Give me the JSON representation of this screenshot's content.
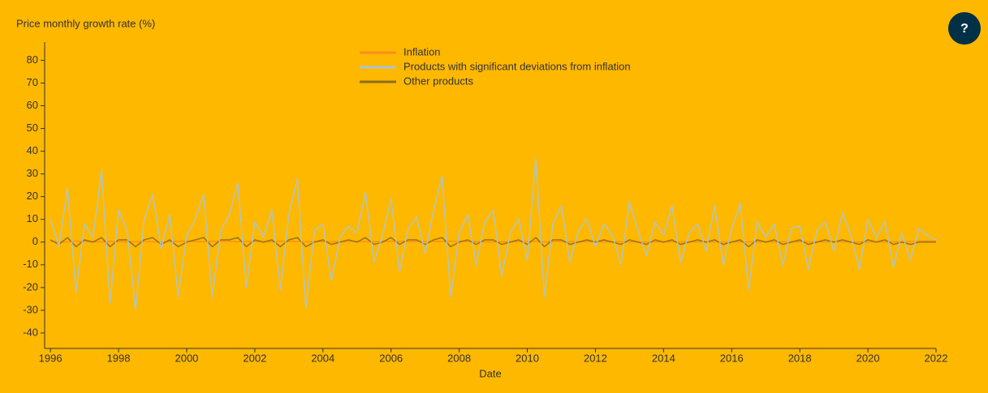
{
  "chart_data": {
    "type": "line",
    "y_label": "Price monthly growth rate (%)",
    "x_label": "Date",
    "help_button": "?",
    "x": [
      1996,
      1996.25,
      1996.5,
      1996.75,
      1997,
      1997.25,
      1997.5,
      1997.75,
      1998,
      1998.25,
      1998.5,
      1998.75,
      1999,
      1999.25,
      1999.5,
      1999.75,
      2000,
      2000.25,
      2000.5,
      2000.75,
      2001,
      2001.25,
      2001.5,
      2001.75,
      2002,
      2002.25,
      2002.5,
      2002.75,
      2003,
      2003.25,
      2003.5,
      2003.75,
      2004,
      2004.25,
      2004.5,
      2004.75,
      2005,
      2005.25,
      2005.5,
      2005.75,
      2006,
      2006.25,
      2006.5,
      2006.75,
      2007,
      2007.25,
      2007.5,
      2007.75,
      2008,
      2008.25,
      2008.5,
      2008.75,
      2009,
      2009.25,
      2009.5,
      2009.75,
      2010,
      2010.25,
      2010.5,
      2010.75,
      2011,
      2011.25,
      2011.5,
      2011.75,
      2012,
      2012.25,
      2012.5,
      2012.75,
      2013,
      2013.25,
      2013.5,
      2013.75,
      2014,
      2014.25,
      2014.5,
      2014.75,
      2015,
      2015.25,
      2015.5,
      2015.75,
      2016,
      2016.25,
      2016.5,
      2016.75,
      2017,
      2017.25,
      2017.5,
      2017.75,
      2018,
      2018.25,
      2018.5,
      2018.75,
      2019,
      2019.25,
      2019.5,
      2019.75,
      2020,
      2020.25,
      2020.5,
      2020.75,
      2021,
      2021.25,
      2021.5,
      2021.75,
      2022
    ],
    "series": [
      {
        "name": "Inflation",
        "color": "#ff8c1a",
        "values": [
          0.3,
          0.2,
          0.1,
          0.4,
          0.3,
          0.2,
          0.1,
          0.3,
          0.2,
          0.1,
          0.2,
          0.3,
          0.2,
          0.1,
          0.2,
          0.3,
          0.4,
          0.3,
          0.2,
          0.3,
          0.4,
          0.3,
          0.2,
          0.3,
          0.3,
          0.2,
          0.2,
          0.3,
          0.4,
          0.2,
          0.1,
          0.3,
          0.2,
          0.2,
          0.1,
          0.3,
          0.3,
          0.2,
          0.2,
          0.3,
          0.3,
          0.3,
          0.2,
          0.3,
          0.3,
          0.3,
          0.3,
          0.4,
          0.4,
          0.3,
          0.2,
          0.1,
          0.1,
          0.1,
          0.2,
          0.2,
          0.3,
          0.3,
          0.1,
          0.2,
          0.3,
          0.2,
          0.1,
          0.2,
          0.3,
          0.1,
          0.2,
          0.2,
          0.1,
          0.1,
          0.1,
          0.1,
          0.1,
          0.2,
          0.1,
          0.1,
          0.1,
          0.1,
          0.1,
          0.1,
          0.1,
          0.1,
          0.1,
          0.1,
          0.2,
          0.1,
          0.1,
          0.2,
          0.2,
          0.1,
          0.1,
          0.1,
          0.2,
          0.1,
          0.1,
          0.1,
          0.1,
          0.1,
          0.1,
          0.1,
          0.2,
          0.3,
          0.4,
          0.5,
          0.5
        ]
      },
      {
        "name": "Other products",
        "color": "#8a6d1a",
        "values": [
          1,
          -1,
          2,
          -2,
          1,
          0,
          2,
          -2,
          1,
          1,
          -2,
          1,
          2,
          -1,
          1,
          -2,
          0,
          1,
          2,
          -2,
          1,
          1,
          2,
          -2,
          1,
          0,
          1,
          -2,
          1,
          2,
          -2,
          0,
          1,
          -1,
          0,
          1,
          0,
          2,
          -1,
          0,
          2,
          -1,
          1,
          1,
          -1,
          1,
          2,
          -2,
          0,
          1,
          -1,
          1,
          1,
          -1,
          0,
          1,
          -1,
          2,
          -2,
          1,
          1,
          -1,
          0,
          1,
          0,
          1,
          0,
          -1,
          1,
          0,
          -1,
          1,
          0,
          1,
          -1,
          0,
          1,
          0,
          1,
          -1,
          0,
          1,
          -2,
          1,
          0,
          1,
          -1,
          0,
          1,
          -1,
          0,
          1,
          0,
          1,
          0,
          -1,
          1,
          0,
          1,
          -1,
          0,
          -1,
          0,
          0,
          0
        ]
      },
      {
        "name": "Products with significant deviations from inflation",
        "color": "#a8c6d4",
        "values": [
          10,
          -2,
          24,
          -22,
          8,
          2,
          32,
          -27,
          14,
          5,
          -30,
          10,
          21,
          -3,
          12,
          -24,
          3,
          10,
          21,
          -24,
          5,
          12,
          26,
          -20,
          9,
          2,
          14,
          -21,
          12,
          28,
          -29,
          5,
          8,
          -17,
          2,
          7,
          4,
          22,
          -9,
          3,
          19,
          -13,
          6,
          11,
          -5,
          14,
          29,
          -24,
          4,
          12,
          -10,
          9,
          14,
          -15,
          4,
          10,
          -8,
          37,
          -24,
          8,
          16,
          -9,
          5,
          10,
          -2,
          8,
          3,
          -10,
          18,
          5,
          -6,
          9,
          3,
          16,
          -9,
          4,
          8,
          -4,
          16,
          -10,
          6,
          17,
          -21,
          9,
          2,
          8,
          -10,
          6,
          7,
          -12,
          5,
          9,
          -4,
          13,
          3,
          -12,
          10,
          2,
          9,
          -11,
          4,
          -8,
          6,
          3,
          1
        ]
      }
    ],
    "legend": "top-center",
    "xlim": [
      1995.83,
      2022.0
    ],
    "xticks": [
      1996,
      1998,
      2000,
      2002,
      2004,
      2006,
      2008,
      2010,
      2012,
      2014,
      2016,
      2018,
      2020,
      2022
    ],
    "ylim": [
      -46.8,
      88
    ],
    "yticks": [
      -40,
      -30,
      -20,
      -10,
      0,
      10,
      20,
      30,
      40,
      50,
      60,
      70,
      80
    ],
    "grid": false
  }
}
